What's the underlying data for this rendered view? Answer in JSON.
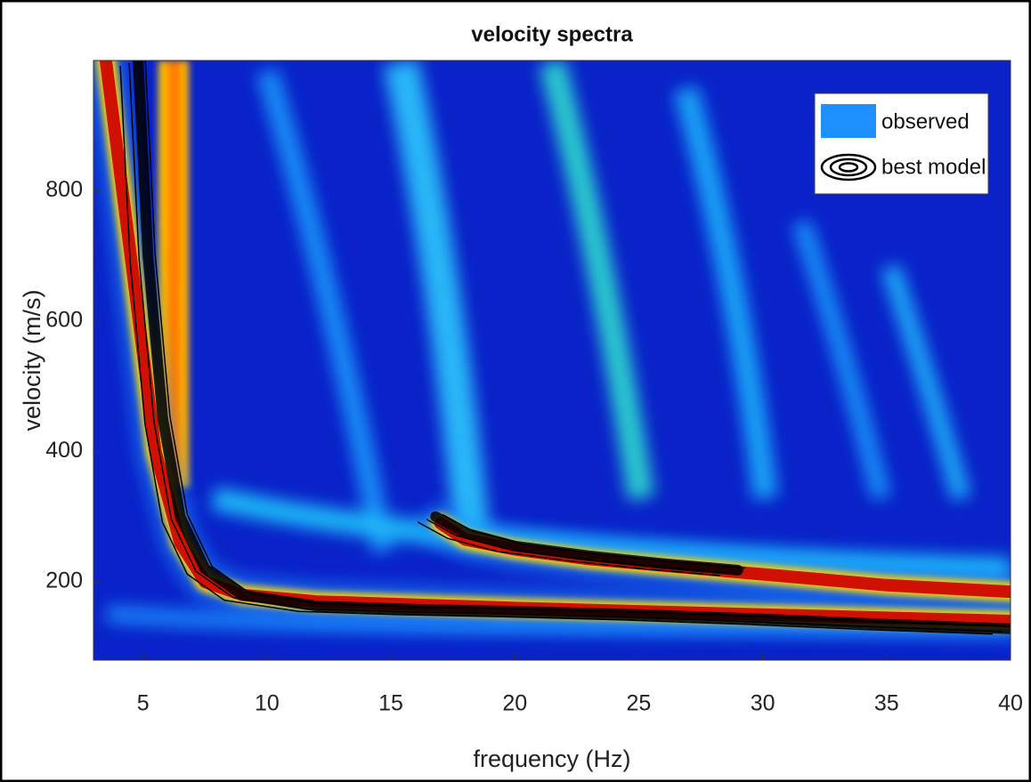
{
  "chart_data": {
    "type": "line",
    "title": "velocity spectra",
    "x_label": "frequency (Hz)",
    "y_label": "velocity (m/s)",
    "xlim": [
      3,
      40
    ],
    "ylim": [
      80,
      1000
    ],
    "xticks": [
      5,
      10,
      15,
      20,
      25,
      30,
      35,
      40
    ],
    "yticks": [
      200,
      400,
      600,
      800
    ],
    "legend": "upper right",
    "series": [
      {
        "name": "observed",
        "color": "#1e90ff",
        "x": [
          3.5,
          4.5,
          5.5,
          6.5,
          7.5,
          9,
          12,
          16,
          20,
          25,
          30,
          35,
          40,
          null,
          17,
          18,
          20,
          23,
          26,
          29,
          32,
          35,
          40
        ],
        "values": [
          1000,
          700,
          400,
          260,
          200,
          180,
          170,
          165,
          160,
          155,
          150,
          145,
          140,
          null,
          290,
          265,
          250,
          235,
          225,
          215,
          205,
          195,
          185
        ]
      },
      {
        "name": "best model",
        "color": "#000000",
        "x": [
          4.8,
          5.2,
          5.8,
          6.5,
          7.5,
          9,
          12,
          16,
          20,
          25,
          30,
          35,
          40,
          null,
          16.8,
          18,
          20,
          23,
          26,
          29
        ],
        "values": [
          1000,
          700,
          450,
          300,
          220,
          180,
          163,
          158,
          155,
          150,
          143,
          135,
          128,
          null,
          300,
          275,
          255,
          240,
          228,
          218
        ]
      }
    ]
  }
}
